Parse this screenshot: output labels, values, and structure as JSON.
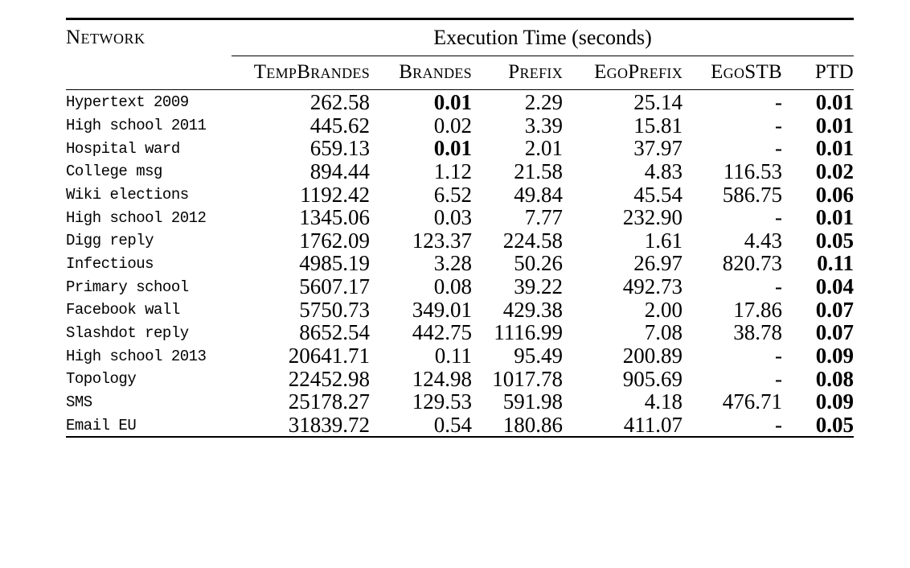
{
  "colors": {
    "background": "#ffffff",
    "text": "#000000",
    "rule": "#000000"
  },
  "table": {
    "header": {
      "network": "Network",
      "span": "Execution Time (seconds)",
      "columns": [
        "TempBrandes",
        "Brandes",
        "Prefix",
        "EgoPrefix",
        "EgoSTB",
        "PTD"
      ]
    },
    "rows": [
      {
        "network": "Hypertext 2009",
        "values": [
          "262.58",
          "0.01",
          "2.29",
          "25.14",
          "-",
          "0.01"
        ],
        "bold": [
          false,
          true,
          false,
          false,
          false,
          true
        ]
      },
      {
        "network": "High school 2011",
        "values": [
          "445.62",
          "0.02",
          "3.39",
          "15.81",
          "-",
          "0.01"
        ],
        "bold": [
          false,
          false,
          false,
          false,
          false,
          true
        ]
      },
      {
        "network": "Hospital ward",
        "values": [
          "659.13",
          "0.01",
          "2.01",
          "37.97",
          "-",
          "0.01"
        ],
        "bold": [
          false,
          true,
          false,
          false,
          false,
          true
        ]
      },
      {
        "network": "College msg",
        "values": [
          "894.44",
          "1.12",
          "21.58",
          "4.83",
          "116.53",
          "0.02"
        ],
        "bold": [
          false,
          false,
          false,
          false,
          false,
          true
        ]
      },
      {
        "network": "Wiki elections",
        "values": [
          "1192.42",
          "6.52",
          "49.84",
          "45.54",
          "586.75",
          "0.06"
        ],
        "bold": [
          false,
          false,
          false,
          false,
          false,
          true
        ]
      },
      {
        "network": "High school 2012",
        "values": [
          "1345.06",
          "0.03",
          "7.77",
          "232.90",
          "-",
          "0.01"
        ],
        "bold": [
          false,
          false,
          false,
          false,
          false,
          true
        ]
      },
      {
        "network": "Digg reply",
        "values": [
          "1762.09",
          "123.37",
          "224.58",
          "1.61",
          "4.43",
          "0.05"
        ],
        "bold": [
          false,
          false,
          false,
          false,
          false,
          true
        ]
      },
      {
        "network": "Infectious",
        "values": [
          "4985.19",
          "3.28",
          "50.26",
          "26.97",
          "820.73",
          "0.11"
        ],
        "bold": [
          false,
          false,
          false,
          false,
          false,
          true
        ]
      },
      {
        "network": "Primary school",
        "values": [
          "5607.17",
          "0.08",
          "39.22",
          "492.73",
          "-",
          "0.04"
        ],
        "bold": [
          false,
          false,
          false,
          false,
          false,
          true
        ]
      },
      {
        "network": "Facebook wall",
        "values": [
          "5750.73",
          "349.01",
          "429.38",
          "2.00",
          "17.86",
          "0.07"
        ],
        "bold": [
          false,
          false,
          false,
          false,
          false,
          true
        ]
      },
      {
        "network": "Slashdot reply",
        "values": [
          "8652.54",
          "442.75",
          "1116.99",
          "7.08",
          "38.78",
          "0.07"
        ],
        "bold": [
          false,
          false,
          false,
          false,
          false,
          true
        ]
      },
      {
        "network": "High school 2013",
        "values": [
          "20641.71",
          "0.11",
          "95.49",
          "200.89",
          "-",
          "0.09"
        ],
        "bold": [
          false,
          false,
          false,
          false,
          false,
          true
        ]
      },
      {
        "network": "Topology",
        "values": [
          "22452.98",
          "124.98",
          "1017.78",
          "905.69",
          "-",
          "0.08"
        ],
        "bold": [
          false,
          false,
          false,
          false,
          false,
          true
        ]
      },
      {
        "network": "SMS",
        "values": [
          "25178.27",
          "129.53",
          "591.98",
          "4.18",
          "476.71",
          "0.09"
        ],
        "bold": [
          false,
          false,
          false,
          false,
          false,
          true
        ]
      },
      {
        "network": "Email EU",
        "values": [
          "31839.72",
          "0.54",
          "180.86",
          "411.07",
          "-",
          "0.05"
        ],
        "bold": [
          false,
          false,
          false,
          false,
          false,
          true
        ]
      }
    ]
  }
}
